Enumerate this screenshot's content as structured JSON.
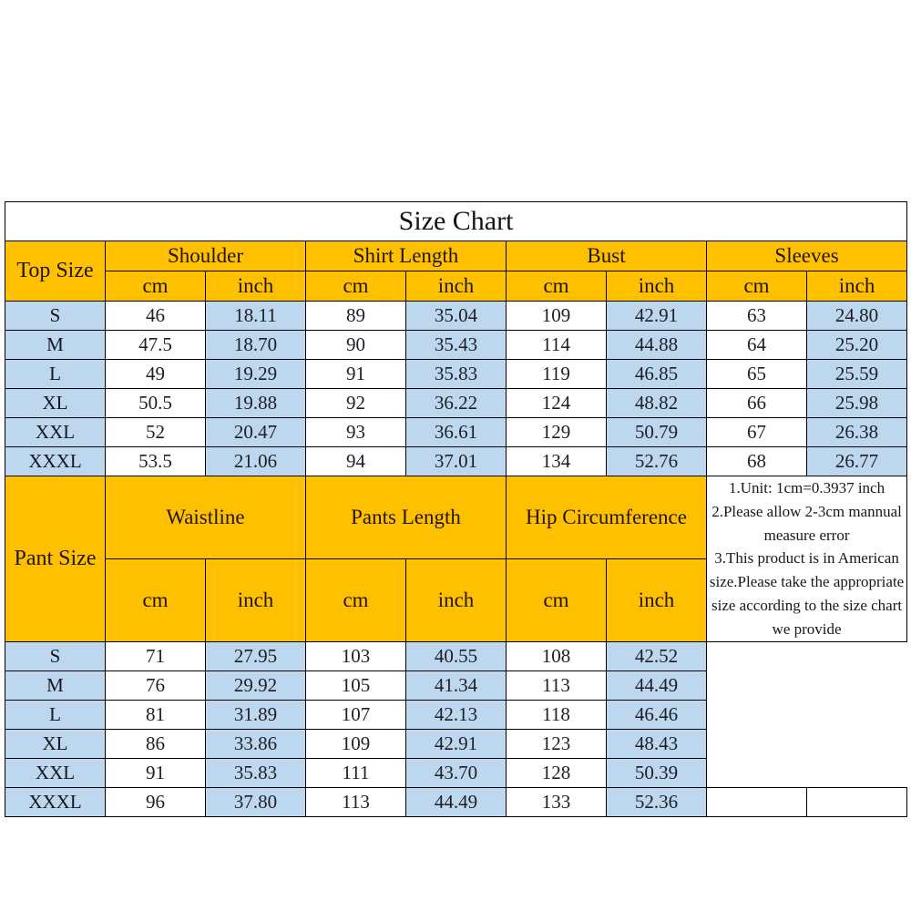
{
  "title": "Size Chart",
  "unit_labels": {
    "cm": "cm",
    "inch": "inch"
  },
  "colors": {
    "header_bg": "#FFC000",
    "stripe_bg": "#BDD7EE",
    "cell_bg": "#FFFFFF",
    "border": "#000000"
  },
  "notes": {
    "line1": "1.Unit: 1cm=0.3937 inch",
    "line2": "2.Please allow 2-3cm mannual measure error",
    "line3": "3.This product is in American size.Please take the appropriate size according to the size chart we provide"
  },
  "chart_data": [
    {
      "type": "table",
      "title": "Size Chart",
      "row_header": "Top Size",
      "column_groups": [
        "Shoulder",
        "Shirt Length",
        "Bust",
        "Sleeves"
      ],
      "unit_columns": [
        "cm",
        "inch"
      ],
      "rows": [
        {
          "size": "S",
          "values": [
            "46",
            "18.11",
            "89",
            "35.04",
            "109",
            "42.91",
            "63",
            "24.80"
          ]
        },
        {
          "size": "M",
          "values": [
            "47.5",
            "18.70",
            "90",
            "35.43",
            "114",
            "44.88",
            "64",
            "25.20"
          ]
        },
        {
          "size": "L",
          "values": [
            "49",
            "19.29",
            "91",
            "35.83",
            "119",
            "46.85",
            "65",
            "25.59"
          ]
        },
        {
          "size": "XL",
          "values": [
            "50.5",
            "19.88",
            "92",
            "36.22",
            "124",
            "48.82",
            "66",
            "25.98"
          ]
        },
        {
          "size": "XXL",
          "values": [
            "52",
            "20.47",
            "93",
            "36.61",
            "129",
            "50.79",
            "67",
            "26.38"
          ]
        },
        {
          "size": "XXXL",
          "values": [
            "53.5",
            "21.06",
            "94",
            "37.01",
            "134",
            "52.76",
            "68",
            "26.77"
          ]
        }
      ]
    },
    {
      "type": "table",
      "row_header": "Pant Size",
      "column_groups": [
        "Waistline",
        "Pants Length",
        "Hip Circumference"
      ],
      "unit_columns": [
        "cm",
        "inch"
      ],
      "rows": [
        {
          "size": "S",
          "values": [
            "71",
            "27.95",
            "103",
            "40.55",
            "108",
            "42.52"
          ]
        },
        {
          "size": "M",
          "values": [
            "76",
            "29.92",
            "105",
            "41.34",
            "113",
            "44.49"
          ]
        },
        {
          "size": "L",
          "values": [
            "81",
            "31.89",
            "107",
            "42.13",
            "118",
            "46.46"
          ]
        },
        {
          "size": "XL",
          "values": [
            "86",
            "33.86",
            "109",
            "42.91",
            "123",
            "48.43"
          ]
        },
        {
          "size": "XXL",
          "values": [
            "91",
            "35.83",
            "111",
            "43.70",
            "128",
            "50.39"
          ]
        },
        {
          "size": "XXXL",
          "values": [
            "96",
            "37.80",
            "113",
            "44.49",
            "133",
            "52.36"
          ]
        }
      ]
    }
  ]
}
